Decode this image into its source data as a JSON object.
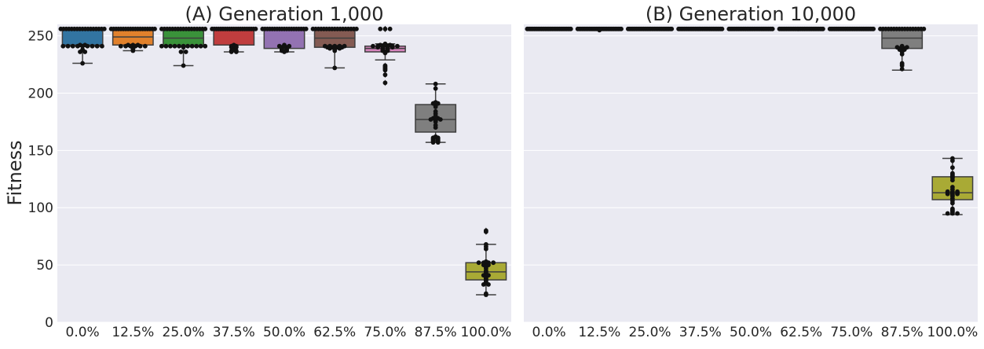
{
  "chart_data": {
    "type": "box",
    "ylabel": "Fitness",
    "ylim": [
      0,
      260
    ],
    "yticks": [
      0,
      50,
      100,
      150,
      200,
      250
    ],
    "categories": [
      "0.0%",
      "12.5%",
      "25.0%",
      "37.5%",
      "50.0%",
      "62.5%",
      "75.0%",
      "87.5%",
      "100.0%"
    ],
    "grid": true,
    "palette": [
      "#3274a1",
      "#e1812c",
      "#3a923a",
      "#c03d3e",
      "#9372b2",
      "#845b53",
      "#d684bd",
      "#7f7f7f",
      "#a9aa35"
    ],
    "panels": [
      {
        "title": "(A) Generation 1,000",
        "boxes": [
          {
            "category": "0.0%",
            "q1": 241,
            "median": 242,
            "q3": 256,
            "whisker_low": 226,
            "whisker_high": 256,
            "outliers": []
          },
          {
            "category": "12.5%",
            "q1": 242,
            "median": 249,
            "q3": 256,
            "whisker_low": 237,
            "whisker_high": 256,
            "outliers": []
          },
          {
            "category": "25.0%",
            "q1": 241,
            "median": 248,
            "q3": 256,
            "whisker_low": 224,
            "whisker_high": 256,
            "outliers": []
          },
          {
            "category": "37.5%",
            "q1": 242,
            "median": 256,
            "q3": 256,
            "whisker_low": 236,
            "whisker_high": 256,
            "outliers": []
          },
          {
            "category": "50.0%",
            "q1": 239,
            "median": 256,
            "q3": 256,
            "whisker_low": 236,
            "whisker_high": 256,
            "outliers": []
          },
          {
            "category": "62.5%",
            "q1": 240,
            "median": 248,
            "q3": 256,
            "whisker_low": 222,
            "whisker_high": 256,
            "outliers": []
          },
          {
            "category": "75.0%",
            "q1": 236,
            "median": 239,
            "q3": 241,
            "whisker_low": 229,
            "whisker_high": 243,
            "outliers": [
              256,
              256,
              256,
              224,
              222,
              220,
              216,
              209
            ]
          },
          {
            "category": "87.5%",
            "q1": 166,
            "median": 177,
            "q3": 190,
            "whisker_low": 157,
            "whisker_high": 208,
            "outliers": []
          },
          {
            "category": "100.0%",
            "q1": 37,
            "median": 44,
            "q3": 52,
            "whisker_low": 24,
            "whisker_high": 68,
            "outliers": [
              80,
              79
            ]
          }
        ],
        "points": [
          [
            256,
            256,
            256,
            256,
            256,
            256,
            256,
            256,
            256,
            256,
            256,
            256,
            256,
            256,
            256,
            256,
            256,
            242,
            242,
            241,
            241,
            241,
            241,
            241,
            241,
            241,
            241,
            241,
            238,
            236,
            236,
            226
          ],
          [
            256,
            256,
            256,
            256,
            256,
            256,
            256,
            256,
            256,
            256,
            256,
            256,
            256,
            256,
            256,
            256,
            256,
            256,
            256,
            242,
            242,
            242,
            241,
            241,
            241,
            241,
            241,
            241,
            240,
            239,
            238,
            237
          ],
          [
            256,
            256,
            256,
            256,
            256,
            256,
            256,
            256,
            256,
            256,
            256,
            256,
            256,
            256,
            256,
            256,
            256,
            241,
            241,
            241,
            241,
            241,
            241,
            241,
            241,
            241,
            241,
            241,
            240,
            236,
            236,
            224
          ],
          [
            256,
            256,
            256,
            256,
            256,
            256,
            256,
            256,
            256,
            256,
            256,
            256,
            256,
            256,
            256,
            256,
            256,
            256,
            256,
            256,
            256,
            242,
            241,
            241,
            240,
            240,
            239,
            238,
            237,
            237,
            236,
            236
          ],
          [
            256,
            256,
            256,
            256,
            256,
            256,
            256,
            256,
            256,
            256,
            256,
            256,
            256,
            256,
            256,
            256,
            256,
            256,
            256,
            242,
            241,
            241,
            241,
            240,
            240,
            239,
            239,
            238,
            238,
            237,
            237,
            236
          ],
          [
            256,
            256,
            256,
            256,
            256,
            256,
            256,
            256,
            256,
            256,
            256,
            256,
            256,
            256,
            256,
            256,
            256,
            241,
            241,
            241,
            241,
            241,
            240,
            240,
            240,
            240,
            239,
            239,
            239,
            238,
            237,
            222
          ],
          [
            256,
            256,
            256,
            243,
            242,
            242,
            242,
            241,
            241,
            241,
            241,
            241,
            241,
            240,
            240,
            240,
            240,
            239,
            239,
            238,
            238,
            237,
            237,
            236,
            235,
            224,
            223,
            222,
            221,
            220,
            216,
            209
          ],
          [
            208,
            204,
            192,
            191,
            191,
            190,
            189,
            188,
            184,
            182,
            180,
            179,
            178,
            178,
            177,
            177,
            177,
            176,
            175,
            172,
            170,
            162,
            161,
            161,
            160,
            160,
            159,
            159,
            158,
            158,
            157,
            157
          ],
          [
            80,
            79,
            68,
            66,
            64,
            53,
            52,
            52,
            52,
            52,
            51,
            50,
            50,
            48,
            47,
            45,
            44,
            43,
            42,
            41,
            41,
            40,
            39,
            38,
            37,
            36,
            35,
            34,
            33,
            33,
            25,
            24
          ]
        ]
      },
      {
        "title": "(B) Generation 10,000",
        "boxes": [
          {
            "category": "0.0%",
            "q1": 256,
            "median": 256,
            "q3": 256,
            "whisker_low": 256,
            "whisker_high": 256,
            "outliers": []
          },
          {
            "category": "12.5%",
            "q1": 256,
            "median": 256,
            "q3": 256,
            "whisker_low": 256,
            "whisker_high": 256,
            "outliers": []
          },
          {
            "category": "25.0%",
            "q1": 256,
            "median": 256,
            "q3": 256,
            "whisker_low": 256,
            "whisker_high": 256,
            "outliers": []
          },
          {
            "category": "37.5%",
            "q1": 256,
            "median": 256,
            "q3": 256,
            "whisker_low": 256,
            "whisker_high": 256,
            "outliers": []
          },
          {
            "category": "50.0%",
            "q1": 256,
            "median": 256,
            "q3": 256,
            "whisker_low": 256,
            "whisker_high": 256,
            "outliers": []
          },
          {
            "category": "62.5%",
            "q1": 256,
            "median": 256,
            "q3": 256,
            "whisker_low": 256,
            "whisker_high": 256,
            "outliers": []
          },
          {
            "category": "75.0%",
            "q1": 256,
            "median": 256,
            "q3": 256,
            "whisker_low": 256,
            "whisker_high": 256,
            "outliers": []
          },
          {
            "category": "87.5%",
            "q1": 239,
            "median": 248,
            "q3": 256,
            "whisker_low": 220,
            "whisker_high": 256,
            "outliers": []
          },
          {
            "category": "100.0%",
            "q1": 107,
            "median": 113,
            "q3": 127,
            "whisker_low": 94,
            "whisker_high": 143,
            "outliers": []
          }
        ],
        "points": [
          [
            256,
            256,
            256,
            256,
            256,
            256,
            256,
            256,
            256,
            256,
            256,
            256,
            256,
            256,
            256,
            256,
            256,
            256,
            256,
            256,
            256,
            256,
            256,
            256,
            256,
            256,
            256,
            256,
            256,
            256,
            256,
            256
          ],
          [
            256,
            256,
            256,
            256,
            256,
            256,
            256,
            256,
            256,
            256,
            256,
            256,
            256,
            256,
            256,
            256,
            256,
            256,
            256,
            256,
            256,
            256,
            256,
            256,
            256,
            256,
            256,
            256,
            256,
            256,
            256,
            255
          ],
          [
            256,
            256,
            256,
            256,
            256,
            256,
            256,
            256,
            256,
            256,
            256,
            256,
            256,
            256,
            256,
            256,
            256,
            256,
            256,
            256,
            256,
            256,
            256,
            256,
            256,
            256,
            256,
            256,
            256,
            256,
            256,
            256
          ],
          [
            256,
            256,
            256,
            256,
            256,
            256,
            256,
            256,
            256,
            256,
            256,
            256,
            256,
            256,
            256,
            256,
            256,
            256,
            256,
            256,
            256,
            256,
            256,
            256,
            256,
            256,
            256,
            256,
            256,
            256,
            256,
            256
          ],
          [
            256,
            256,
            256,
            256,
            256,
            256,
            256,
            256,
            256,
            256,
            256,
            256,
            256,
            256,
            256,
            256,
            256,
            256,
            256,
            256,
            256,
            256,
            256,
            256,
            256,
            256,
            256,
            256,
            256,
            256,
            256,
            256
          ],
          [
            256,
            256,
            256,
            256,
            256,
            256,
            256,
            256,
            256,
            256,
            256,
            256,
            256,
            256,
            256,
            256,
            256,
            256,
            256,
            256,
            256,
            256,
            256,
            256,
            256,
            256,
            256,
            256,
            256,
            256,
            256,
            256
          ],
          [
            256,
            256,
            256,
            256,
            256,
            256,
            256,
            256,
            256,
            256,
            256,
            256,
            256,
            256,
            256,
            256,
            256,
            256,
            256,
            256,
            256,
            256,
            256,
            256,
            256,
            256,
            256,
            256,
            256,
            256,
            256,
            256
          ],
          [
            256,
            256,
            256,
            256,
            256,
            256,
            256,
            256,
            256,
            256,
            256,
            256,
            256,
            256,
            256,
            256,
            256,
            241,
            240,
            240,
            240,
            239,
            239,
            238,
            238,
            237,
            236,
            234,
            226,
            225,
            224,
            221
          ],
          [
            143,
            141,
            135,
            130,
            129,
            128,
            127,
            126,
            124,
            118,
            116,
            114,
            114,
            114,
            113,
            113,
            113,
            112,
            112,
            112,
            111,
            110,
            108,
            106,
            104,
            99,
            98,
            97,
            96,
            95,
            95,
            95
          ]
        ]
      }
    ]
  }
}
